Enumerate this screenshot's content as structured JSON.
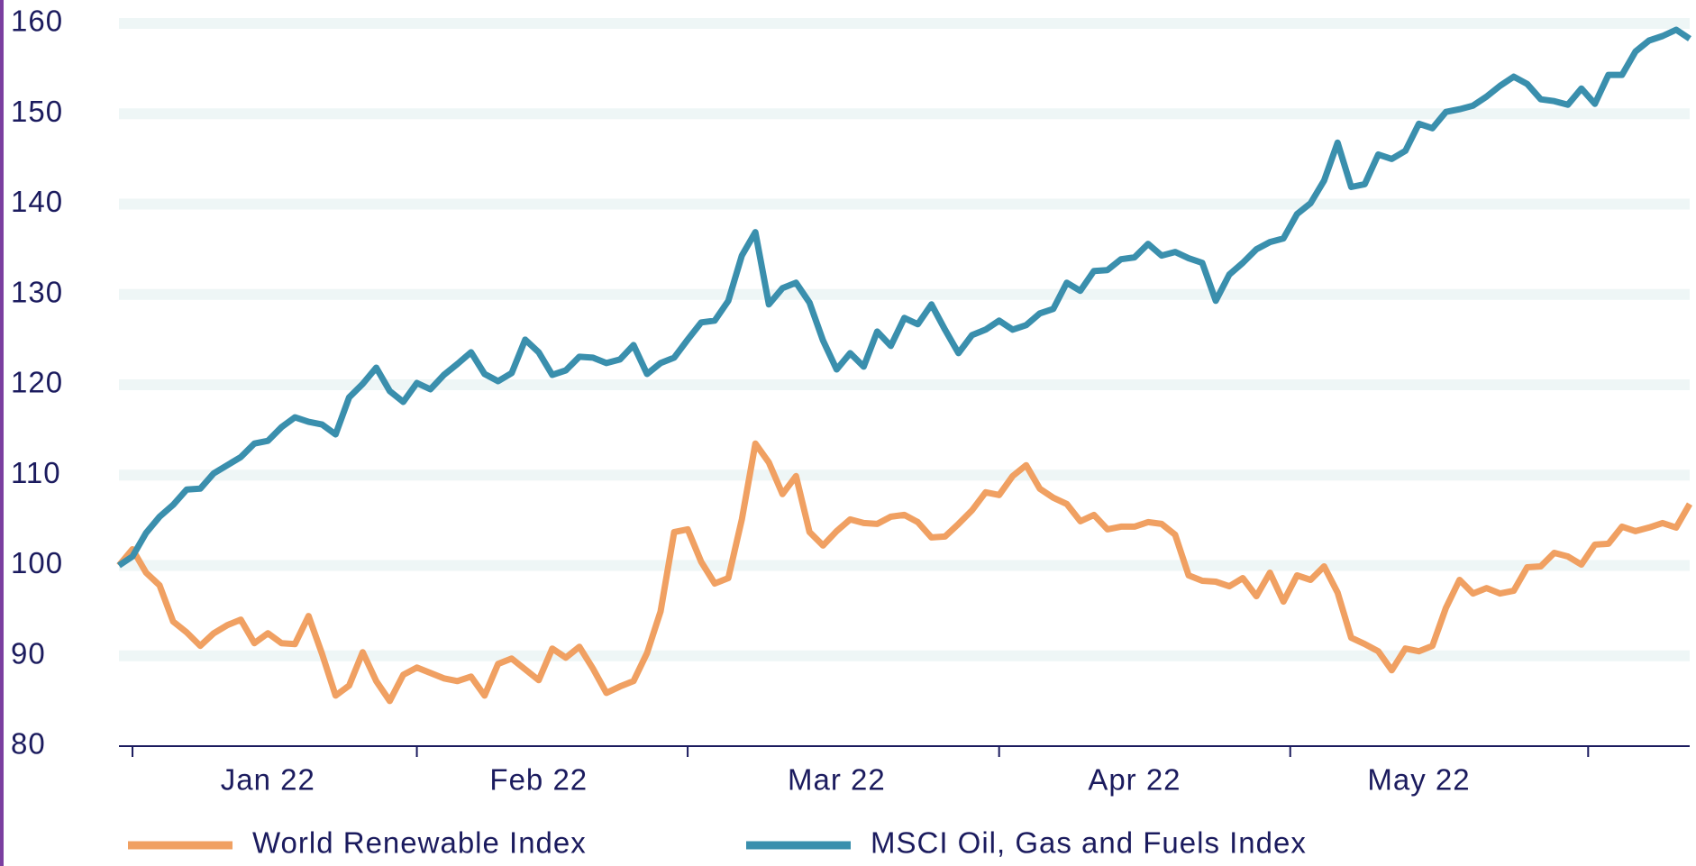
{
  "chart_data": {
    "type": "line",
    "categories": [
      null,
      null,
      null,
      null,
      null,
      null,
      null,
      null,
      null,
      null,
      null,
      "Jan 22",
      null,
      null,
      null,
      null,
      null,
      null,
      null,
      null,
      null,
      null,
      null,
      null,
      null,
      null,
      null,
      null,
      null,
      null,
      null,
      "Feb 22",
      null,
      null,
      null,
      null,
      null,
      null,
      null,
      null,
      null,
      null,
      null,
      null,
      null,
      null,
      null,
      null,
      null,
      null,
      null,
      null,
      null,
      "Mar 22",
      null,
      null,
      null,
      null,
      null,
      null,
      null,
      null,
      null,
      null,
      null,
      null,
      null,
      null,
      null,
      null,
      null,
      null,
      null,
      null,
      null,
      "Apr 22",
      null,
      null,
      null,
      null,
      null,
      null,
      null,
      null,
      null,
      null,
      null,
      null,
      null,
      null,
      null,
      null,
      null,
      null,
      null,
      null,
      "May 22",
      null,
      null,
      null,
      null,
      null,
      null,
      null,
      null,
      null,
      null,
      null,
      null,
      null,
      null,
      null,
      null,
      null,
      null,
      null,
      null
    ],
    "series": [
      {
        "name": "World Renewable Index",
        "color": "#f0a062",
        "values": [
          100,
          101.8,
          99.2,
          97.8,
          93.8,
          92.6,
          91.1,
          92.5,
          93.4,
          94,
          91.4,
          92.5,
          91.4,
          91.3,
          94.4,
          90.2,
          85.6,
          86.7,
          90.4,
          87.2,
          85,
          87.9,
          88.7,
          88.1,
          87.5,
          87.2,
          87.7,
          85.6,
          89.1,
          89.7,
          88.5,
          87.3,
          90.8,
          89.8,
          91,
          88.6,
          85.9,
          86.6,
          87.2,
          90.3,
          94.9,
          103.7,
          104,
          100.4,
          98,
          98.6,
          105.1,
          113.5,
          111.4,
          107.9,
          109.9,
          103.7,
          102.2,
          103.8,
          105.1,
          104.7,
          104.6,
          105.4,
          105.6,
          104.8,
          103.1,
          103.2,
          104.6,
          106.1,
          108.1,
          107.8,
          109.9,
          111.1,
          108.5,
          107.5,
          106.8,
          104.9,
          105.6,
          104,
          104.3,
          104.3,
          104.8,
          104.6,
          103.4,
          98.9,
          98.3,
          98.2,
          97.7,
          98.6,
          96.6,
          99.2,
          96,
          98.9,
          98.4,
          99.9,
          97,
          92,
          91.3,
          90.5,
          88.4,
          90.8,
          90.5,
          91.1,
          95.3,
          98.4,
          96.9,
          97.5,
          96.9,
          97.2,
          99.8,
          99.9,
          101.4,
          101,
          100.1,
          102.3,
          102.4,
          104.3,
          103.8,
          104.2,
          104.7,
          104.2,
          106.8
        ]
      },
      {
        "name": "MSCI Oil, Gas and Fuels Index",
        "color": "#3a8fad",
        "values": [
          100,
          101,
          103.6,
          105.4,
          106.7,
          108.4,
          108.5,
          110.2,
          111.1,
          112,
          113.5,
          113.8,
          115.3,
          116.4,
          115.9,
          115.6,
          114.5,
          118.6,
          120.1,
          121.9,
          119.3,
          118.1,
          120.2,
          119.5,
          121.1,
          122.3,
          123.6,
          121.2,
          120.4,
          121.3,
          125,
          123.6,
          121.1,
          121.6,
          123.1,
          123,
          122.4,
          122.8,
          124.4,
          121.2,
          122.4,
          123,
          125,
          126.9,
          127.1,
          129.3,
          134.3,
          136.9,
          128.9,
          130.7,
          131.3,
          129.1,
          124.9,
          121.7,
          123.5,
          122,
          125.9,
          124.3,
          127.4,
          126.7,
          128.9,
          126.1,
          123.5,
          125.5,
          126.1,
          127.1,
          126.1,
          126.6,
          127.9,
          128.4,
          131.3,
          130.4,
          132.6,
          132.7,
          133.9,
          134.1,
          135.6,
          134.3,
          134.7,
          134,
          133.5,
          129.3,
          132.2,
          133.5,
          135,
          135.8,
          136.2,
          138.9,
          140.1,
          142.6,
          146.8,
          141.9,
          142.2,
          145.5,
          145,
          145.9,
          148.9,
          148.4,
          150.2,
          150.5,
          150.9,
          151.9,
          153.1,
          154.1,
          153.3,
          151.6,
          151.4,
          151,
          152.8,
          151.1,
          154.3,
          154.3,
          156.9,
          158.1,
          158.6,
          159.3,
          158.3
        ]
      }
    ],
    "ylim": [
      80,
      160
    ],
    "yticks": [
      80,
      90,
      100,
      110,
      120,
      130,
      140,
      150,
      160
    ],
    "grid": true,
    "legend": "bottom"
  }
}
